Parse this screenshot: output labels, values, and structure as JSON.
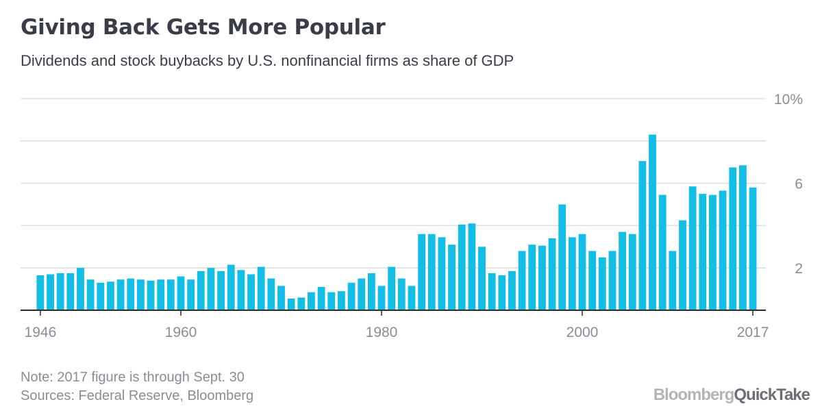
{
  "title": "Giving Back Gets More Popular",
  "subtitle": "Dividends and stock buybacks by U.S. nonfinancial firms as share of GDP",
  "note": "Note: 2017 figure is through Sept. 30",
  "sources": "Sources: Federal Reserve, Bloomberg",
  "logo": {
    "brand": "Bloomberg",
    "product": "QuickTake"
  },
  "colors": {
    "bar": "#12bde6",
    "grid": "#dcdcdc",
    "axis": "#2a2a2a",
    "tick_text": "#8a8c96",
    "title": "#3a3c49"
  },
  "chart_data": {
    "type": "bar",
    "title": "Giving Back Gets More Popular",
    "subtitle": "Dividends and stock buybacks by U.S. nonfinancial firms as share of GDP",
    "xlabel": "",
    "ylabel": "",
    "ylim": [
      0,
      10
    ],
    "y_ticks": [
      {
        "value": 10,
        "label": "10%"
      },
      {
        "value": 8,
        "label": ""
      },
      {
        "value": 6,
        "label": "6"
      },
      {
        "value": 4,
        "label": ""
      },
      {
        "value": 2,
        "label": "2"
      }
    ],
    "x_tick_labels": [
      "1946",
      "1960",
      "1980",
      "2000",
      "2017"
    ],
    "grid": true,
    "y_axis_position": "right",
    "categories": [
      "1946",
      "1947",
      "1948",
      "1949",
      "1950",
      "1951",
      "1952",
      "1953",
      "1954",
      "1955",
      "1956",
      "1957",
      "1958",
      "1959",
      "1960",
      "1961",
      "1962",
      "1963",
      "1964",
      "1965",
      "1966",
      "1967",
      "1968",
      "1969",
      "1970",
      "1971",
      "1972",
      "1973",
      "1974",
      "1975",
      "1976",
      "1977",
      "1978",
      "1979",
      "1980",
      "1981",
      "1982",
      "1983",
      "1984",
      "1985",
      "1986",
      "1987",
      "1988",
      "1989",
      "1990",
      "1991",
      "1992",
      "1993",
      "1994",
      "1995",
      "1996",
      "1997",
      "1998",
      "1999",
      "2000",
      "2001",
      "2002",
      "2003",
      "2004",
      "2005",
      "2006",
      "2007",
      "2008",
      "2009",
      "2010",
      "2011",
      "2012",
      "2013",
      "2014",
      "2015",
      "2016",
      "2017"
    ],
    "values": [
      1.65,
      1.7,
      1.75,
      1.75,
      2.0,
      1.45,
      1.3,
      1.35,
      1.45,
      1.5,
      1.45,
      1.4,
      1.45,
      1.45,
      1.6,
      1.45,
      1.85,
      2.0,
      1.85,
      2.15,
      1.9,
      1.7,
      2.05,
      1.5,
      1.15,
      0.55,
      0.6,
      0.85,
      1.1,
      0.85,
      0.9,
      1.3,
      1.5,
      1.75,
      1.15,
      2.05,
      1.5,
      1.15,
      3.6,
      3.6,
      3.45,
      3.1,
      4.05,
      4.1,
      3.0,
      1.75,
      1.65,
      1.85,
      2.8,
      3.1,
      3.05,
      3.4,
      5.0,
      3.45,
      3.6,
      2.8,
      2.5,
      2.8,
      3.7,
      3.6,
      7.05,
      8.3,
      5.45,
      2.8,
      4.25,
      5.85,
      5.5,
      5.45,
      5.65,
      6.75,
      6.85,
      5.8
    ]
  }
}
